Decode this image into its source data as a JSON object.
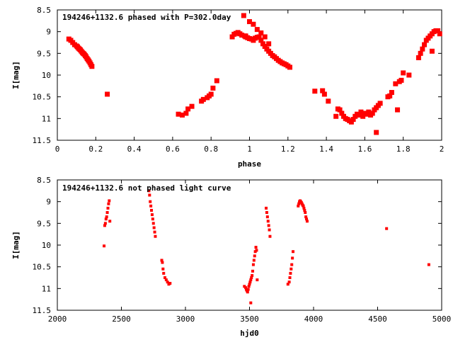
{
  "chart_data": [
    {
      "type": "scatter",
      "title": "194246+1132.6 phased with P=302.0day",
      "xlabel": "phase",
      "ylabel": "I[mag]",
      "xlim": [
        0,
        2
      ],
      "ylim": [
        11.5,
        8.5
      ],
      "y_inverted": true,
      "xticks": [
        "0",
        "0.2",
        "0.4",
        "0.6",
        "0.8",
        "1",
        "1.2",
        "1.4",
        "1.6",
        "1.8",
        "2"
      ],
      "yticks": [
        "8.5",
        "9",
        "9.5",
        "10",
        "10.5",
        "11",
        "11.5"
      ],
      "marker": "filled-square",
      "color": "#ff0000",
      "series": [
        {
          "x": [
            0.06,
            0.07,
            0.08,
            0.09,
            0.1,
            0.105,
            0.11,
            0.115,
            0.12,
            0.125,
            0.13,
            0.135,
            0.14,
            0.145,
            0.15,
            0.155,
            0.16,
            0.165,
            0.17,
            0.175,
            0.18,
            0.26,
            0.63,
            0.65,
            0.67,
            0.68,
            0.7,
            0.75,
            0.76,
            0.78,
            0.79,
            0.8,
            0.81,
            0.83,
            0.91,
            0.92,
            0.93,
            0.94,
            0.95,
            0.96,
            0.97,
            0.975,
            0.98,
            0.99,
            1.0,
            1.01,
            1.02,
            1.03,
            1.04,
            1.05,
            1.06,
            1.07,
            1.08,
            1.09,
            1.1,
            1.11,
            1.12,
            1.13,
            1.14,
            1.15,
            1.16,
            1.17,
            1.18,
            1.19,
            1.2,
            1.21,
            0.98,
            1.0,
            1.02,
            1.04,
            1.06,
            1.08,
            1.1,
            1.34,
            1.38,
            1.39,
            1.41,
            1.45,
            1.46,
            1.47,
            1.48,
            1.49,
            1.5,
            1.51,
            1.52,
            1.53,
            1.54,
            1.55,
            1.56,
            1.57,
            1.58,
            1.59,
            1.6,
            1.61,
            1.62,
            1.63,
            1.64,
            1.65,
            1.66,
            1.67,
            1.68,
            1.66,
            1.72,
            1.73,
            1.74,
            1.76,
            1.77,
            1.78,
            1.79,
            1.8,
            1.83,
            1.88,
            1.89,
            1.9,
            1.91,
            1.92,
            1.93,
            1.94,
            1.95,
            1.96,
            1.97,
            1.98,
            1.99,
            1.95
          ],
          "y": [
            9.17,
            9.2,
            9.25,
            9.3,
            9.33,
            9.35,
            9.38,
            9.4,
            9.42,
            9.45,
            9.48,
            9.5,
            9.52,
            9.55,
            9.58,
            9.62,
            9.65,
            9.68,
            9.72,
            9.76,
            9.8,
            10.44,
            10.9,
            10.92,
            10.88,
            10.78,
            10.72,
            10.6,
            10.56,
            10.52,
            10.48,
            10.44,
            10.3,
            10.13,
            9.12,
            9.06,
            9.04,
            9.02,
            9.05,
            9.08,
            8.63,
            9.1,
            9.12,
            9.14,
            9.16,
            9.17,
            9.2,
            9.15,
            9.13,
            9.12,
            9.2,
            9.28,
            9.34,
            9.4,
            9.45,
            9.5,
            9.55,
            9.58,
            9.62,
            9.66,
            9.69,
            9.72,
            9.74,
            9.76,
            9.79,
            9.82,
            9.1,
            8.77,
            8.83,
            8.95,
            9.03,
            9.12,
            9.28,
            10.37,
            10.36,
            10.44,
            10.6,
            10.95,
            10.78,
            10.8,
            10.88,
            10.95,
            11.0,
            11.02,
            11.05,
            11.08,
            11.02,
            10.95,
            10.9,
            10.92,
            10.85,
            10.95,
            10.88,
            10.9,
            10.85,
            10.92,
            10.88,
            10.8,
            10.75,
            10.7,
            10.65,
            11.32,
            10.5,
            10.48,
            10.4,
            10.2,
            10.8,
            10.15,
            10.12,
            9.95,
            10.0,
            9.6,
            9.5,
            9.4,
            9.3,
            9.2,
            9.15,
            9.1,
            9.05,
            9.0,
            8.98,
            8.98,
            9.05,
            9.45
          ]
        }
      ]
    },
    {
      "type": "scatter",
      "title": "194246+1132.6 not phased light curve",
      "xlabel": "hjd0",
      "ylabel": "I[mag]",
      "xlim": [
        2000,
        5000
      ],
      "ylim": [
        11.5,
        8.5
      ],
      "y_inverted": true,
      "xticks": [
        "2000",
        "2500",
        "3000",
        "3500",
        "4000",
        "4500",
        "5000"
      ],
      "yticks": [
        "8.5",
        "9",
        "9.5",
        "10",
        "10.5",
        "11",
        "11.5"
      ],
      "marker": "small-filled-square",
      "color": "#ff0000",
      "series": [
        {
          "x": [
            2365,
            2370,
            2375,
            2380,
            2385,
            2390,
            2395,
            2400,
            2405,
            2410,
            2715,
            2720,
            2725,
            2730,
            2735,
            2740,
            2745,
            2750,
            2755,
            2760,
            2765,
            2815,
            2820,
            2825,
            2830,
            2840,
            2850,
            2860,
            2870,
            2880,
            3460,
            3470,
            3475,
            3480,
            3485,
            3490,
            3495,
            3500,
            3505,
            3510,
            3515,
            3520,
            3525,
            3530,
            3535,
            3540,
            3545,
            3550,
            3555,
            3560,
            3510,
            3630,
            3635,
            3640,
            3645,
            3650,
            3655,
            3660,
            3800,
            3810,
            3815,
            3820,
            3825,
            3830,
            3835,
            3840,
            3880,
            3885,
            3890,
            3895,
            3900,
            3905,
            3910,
            3915,
            3920,
            3925,
            3930,
            3935,
            3940,
            3945,
            3950,
            4570,
            4900
          ],
          "y": [
            10.02,
            9.55,
            9.5,
            9.4,
            9.35,
            9.25,
            9.15,
            9.05,
            8.98,
            9.45,
            8.75,
            8.85,
            9.0,
            9.1,
            9.2,
            9.3,
            9.4,
            9.5,
            9.6,
            9.7,
            9.8,
            10.35,
            10.4,
            10.55,
            10.65,
            10.75,
            10.8,
            10.85,
            10.9,
            10.88,
            10.95,
            10.98,
            11.02,
            11.05,
            11.08,
            11.02,
            10.95,
            10.9,
            10.85,
            10.8,
            10.75,
            10.7,
            10.6,
            10.45,
            10.35,
            10.25,
            10.15,
            10.05,
            10.12,
            10.8,
            11.33,
            9.15,
            9.25,
            9.35,
            9.45,
            9.55,
            9.65,
            9.8,
            10.9,
            10.85,
            10.75,
            10.65,
            10.55,
            10.45,
            10.3,
            10.15,
            9.1,
            9.05,
            9.0,
            8.98,
            9.0,
            9.02,
            9.05,
            9.08,
            9.1,
            9.15,
            9.2,
            9.25,
            9.35,
            9.4,
            9.45,
            9.62,
            10.45
          ]
        }
      ]
    }
  ]
}
